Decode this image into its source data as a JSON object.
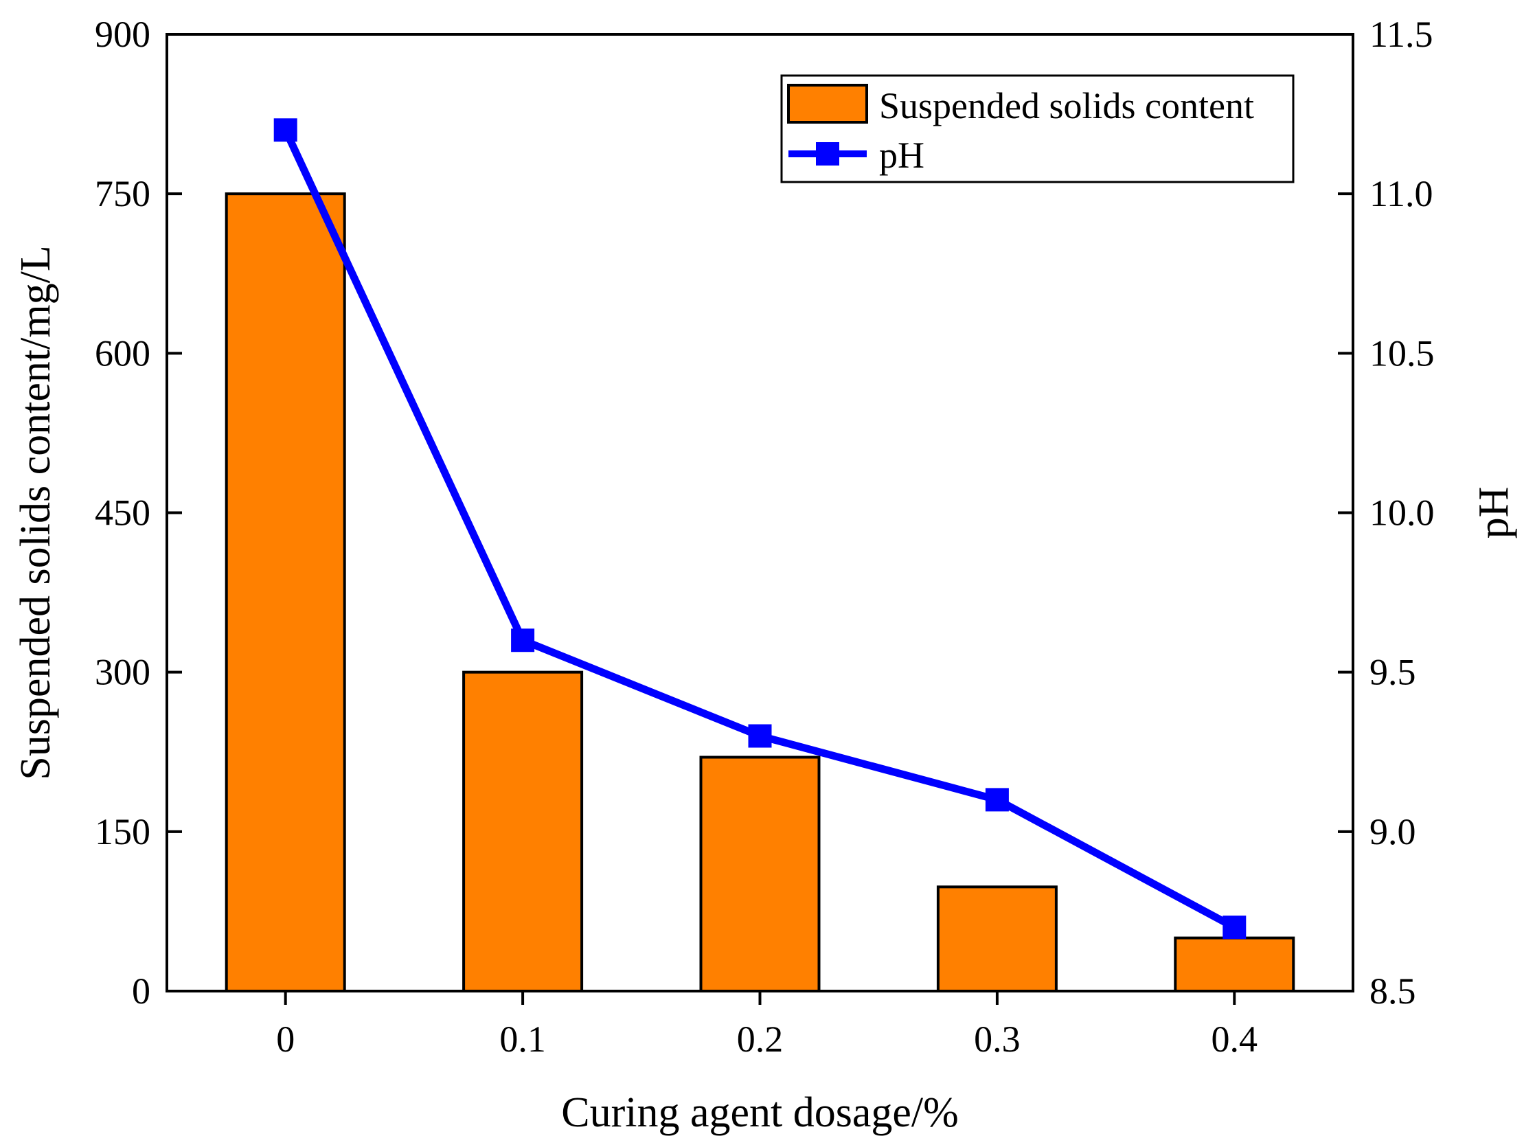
{
  "chart_data": {
    "type": "bar+line",
    "title": "",
    "xlabel": "Curing agent dosage/%",
    "ylabel_left": "Suspended solids content/mg/L",
    "ylabel_right": "pH",
    "categories": [
      "0",
      "0.1",
      "0.2",
      "0.3",
      "0.4"
    ],
    "ylim_left": [
      0,
      900
    ],
    "yticks_left": [
      "0",
      "150",
      "300",
      "450",
      "600",
      "750",
      "900"
    ],
    "ylim_right": [
      8.5,
      11.5
    ],
    "yticks_right": [
      "8.5",
      "9.0",
      "9.5",
      "10.0",
      "10.5",
      "11.0",
      "11.5"
    ],
    "series": [
      {
        "name": "Suspended solids content",
        "type": "bar",
        "axis": "left",
        "color": "#FF8000",
        "values": [
          750,
          300,
          220,
          98,
          50
        ]
      },
      {
        "name": "pH",
        "type": "line",
        "axis": "right",
        "color": "#0000FF",
        "marker": "square",
        "values": [
          11.2,
          9.6,
          9.3,
          9.1,
          8.7
        ]
      }
    ],
    "legend_position": "top-right",
    "grid": false
  }
}
